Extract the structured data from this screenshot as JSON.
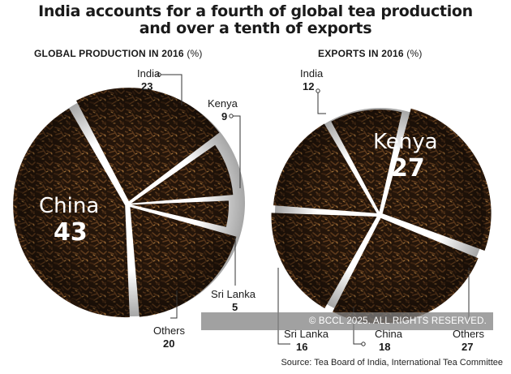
{
  "title": [
    "India accounts for a fourth of global tea production",
    "and over a tenth of exports"
  ],
  "chart_data": [
    {
      "type": "pie",
      "title": "GLOBAL PRODUCTION IN 2016",
      "unit": "(%)",
      "slices": [
        {
          "name": "India",
          "value": 23
        },
        {
          "name": "Kenya",
          "value": 9
        },
        {
          "name": "Sri Lanka",
          "value": 5
        },
        {
          "name": "Others",
          "value": 20
        },
        {
          "name": "China",
          "value": 43
        }
      ]
    },
    {
      "type": "pie",
      "title": "EXPORTS IN 2016",
      "unit": "(%)",
      "slices": [
        {
          "name": "Kenya",
          "value": 27
        },
        {
          "name": "Others",
          "value": 27
        },
        {
          "name": "China",
          "value": 18
        },
        {
          "name": "Sri Lanka",
          "value": 16
        },
        {
          "name": "India",
          "value": 12
        }
      ]
    }
  ],
  "colors": {
    "tea_dark": "#1e1208",
    "tea_mid": "#3a2212",
    "tea_light": "#6b4322",
    "tea_gold": "#a8763a",
    "separator": "#ffffff"
  },
  "watermark": "© BCCL 2025. ALL RIGHTS RESERVED.",
  "source": "Source: Tea Board of India, International Tea Committee"
}
